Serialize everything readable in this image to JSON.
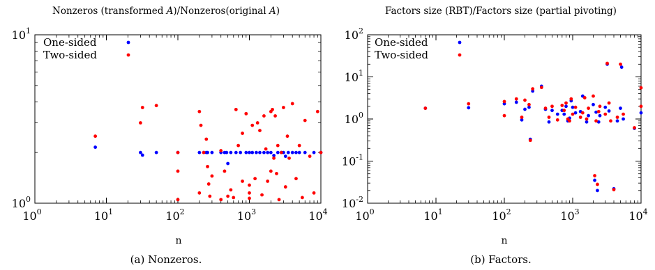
{
  "chart_data": [
    {
      "type": "scatter",
      "title": "Nonzeros (transformed A)/Nonzeros(original A)",
      "xlabel": "n",
      "ylabel": "",
      "caption": "(a) Nonzeros.",
      "x_scale": "log",
      "y_scale": "log",
      "xlim": [
        1,
        10000
      ],
      "ylim": [
        1,
        10
      ],
      "x_ticks": [
        {
          "value": 1,
          "base": "10",
          "exp": "0"
        },
        {
          "value": 10,
          "base": "10",
          "exp": "1"
        },
        {
          "value": 100,
          "base": "10",
          "exp": "2"
        },
        {
          "value": 1000,
          "base": "10",
          "exp": "3"
        },
        {
          "value": 10000,
          "base": "10",
          "exp": "4"
        }
      ],
      "y_ticks": [
        {
          "value": 1,
          "base": "10",
          "exp": "0"
        },
        {
          "value": 10,
          "base": "10",
          "exp": "1"
        }
      ],
      "grid": false,
      "legend_position": "top-left",
      "series": [
        {
          "name": "One-sided",
          "color": "#0000ff",
          "points": [
            [
              7,
              2.15
            ],
            [
              30,
              2.0
            ],
            [
              32,
              1.93
            ],
            [
              50,
              2.0
            ],
            [
              100,
              2.0
            ],
            [
              200,
              2.0
            ],
            [
              230,
              2.0
            ],
            [
              250,
              2.0
            ],
            [
              260,
              2.0
            ],
            [
              300,
              2.0
            ],
            [
              400,
              2.0
            ],
            [
              450,
              2.0
            ],
            [
              480,
              2.0
            ],
            [
              500,
              1.72
            ],
            [
              550,
              2.0
            ],
            [
              650,
              2.0
            ],
            [
              750,
              2.0
            ],
            [
              900,
              2.0
            ],
            [
              1000,
              2.0
            ],
            [
              1100,
              2.0
            ],
            [
              1250,
              2.0
            ],
            [
              1400,
              2.0
            ],
            [
              1600,
              2.0
            ],
            [
              1800,
              2.0
            ],
            [
              2000,
              2.0
            ],
            [
              2200,
              1.92
            ],
            [
              2500,
              2.0
            ],
            [
              2800,
              2.0
            ],
            [
              3000,
              2.0
            ],
            [
              3200,
              1.9
            ],
            [
              3500,
              2.0
            ],
            [
              4000,
              2.0
            ],
            [
              4500,
              2.0
            ],
            [
              5000,
              2.0
            ],
            [
              6000,
              2.0
            ],
            [
              8000,
              2.0
            ],
            [
              10000,
              2.0
            ]
          ]
        },
        {
          "name": "Two-sided",
          "color": "#ff0000",
          "points": [
            [
              7,
              2.5
            ],
            [
              30,
              3.0
            ],
            [
              32,
              3.7
            ],
            [
              50,
              3.8
            ],
            [
              100,
              2.0
            ],
            [
              100,
              1.55
            ],
            [
              100,
              1.05
            ],
            [
              200,
              3.5
            ],
            [
              200,
              1.15
            ],
            [
              210,
              2.9
            ],
            [
              230,
              2.0
            ],
            [
              250,
              2.4
            ],
            [
              260,
              1.65
            ],
            [
              270,
              1.3
            ],
            [
              280,
              1.1
            ],
            [
              300,
              1.45
            ],
            [
              400,
              2.05
            ],
            [
              400,
              1.05
            ],
            [
              450,
              1.55
            ],
            [
              500,
              1.1
            ],
            [
              550,
              1.2
            ],
            [
              600,
              1.08
            ],
            [
              650,
              3.6
            ],
            [
              700,
              2.2
            ],
            [
              800,
              2.6
            ],
            [
              800,
              1.35
            ],
            [
              900,
              3.4
            ],
            [
              1000,
              1.07
            ],
            [
              1000,
              1.28
            ],
            [
              1000,
              1.15
            ],
            [
              1100,
              2.9
            ],
            [
              1200,
              1.4
            ],
            [
              1300,
              3.0
            ],
            [
              1400,
              2.7
            ],
            [
              1500,
              1.12
            ],
            [
              1600,
              3.3
            ],
            [
              1700,
              2.1
            ],
            [
              1800,
              1.35
            ],
            [
              2000,
              1.55
            ],
            [
              2000,
              3.5
            ],
            [
              2100,
              3.6
            ],
            [
              2200,
              1.85
            ],
            [
              2300,
              3.3
            ],
            [
              2400,
              1.5
            ],
            [
              2500,
              2.2
            ],
            [
              2600,
              1.05
            ],
            [
              2800,
              2.0
            ],
            [
              3000,
              3.7
            ],
            [
              3200,
              1.25
            ],
            [
              3400,
              2.5
            ],
            [
              3600,
              1.85
            ],
            [
              4000,
              3.9
            ],
            [
              4500,
              1.4
            ],
            [
              5000,
              2.2
            ],
            [
              5500,
              1.08
            ],
            [
              6000,
              3.1
            ],
            [
              7000,
              1.9
            ],
            [
              8000,
              1.15
            ],
            [
              9000,
              3.5
            ],
            [
              10000,
              2.0
            ]
          ]
        }
      ]
    },
    {
      "type": "scatter",
      "title": "Factors size (RBT)/Factors size (partial pivoting)",
      "xlabel": "n",
      "ylabel": "",
      "caption": "(b) Factors.",
      "x_scale": "log",
      "y_scale": "log",
      "xlim": [
        1,
        10000
      ],
      "ylim": [
        0.01,
        100
      ],
      "x_ticks": [
        {
          "value": 1,
          "base": "10",
          "exp": "0"
        },
        {
          "value": 10,
          "base": "10",
          "exp": "1"
        },
        {
          "value": 100,
          "base": "10",
          "exp": "2"
        },
        {
          "value": 1000,
          "base": "10",
          "exp": "3"
        },
        {
          "value": 10000,
          "base": "10",
          "exp": "4"
        }
      ],
      "y_ticks": [
        {
          "value": 0.01,
          "base": "10",
          "exp": "-2"
        },
        {
          "value": 0.1,
          "base": "10",
          "exp": "-1"
        },
        {
          "value": 1,
          "base": "10",
          "exp": "0"
        },
        {
          "value": 10,
          "base": "10",
          "exp": "1"
        },
        {
          "value": 100,
          "base": "10",
          "exp": "2"
        }
      ],
      "grid": false,
      "legend_position": "top-left",
      "series": [
        {
          "name": "One-sided",
          "color": "#0000ff",
          "points": [
            [
              7,
              1.8
            ],
            [
              30,
              1.85
            ],
            [
              100,
              2.3
            ],
            [
              150,
              2.5
            ],
            [
              180,
              0.95
            ],
            [
              200,
              1.7
            ],
            [
              230,
              1.9
            ],
            [
              240,
              0.33
            ],
            [
              260,
              4.6
            ],
            [
              350,
              6.0
            ],
            [
              400,
              1.7
            ],
            [
              450,
              0.85
            ],
            [
              500,
              1.6
            ],
            [
              600,
              1.3
            ],
            [
              700,
              1.6
            ],
            [
              750,
              1.3
            ],
            [
              800,
              2.0
            ],
            [
              850,
              0.9
            ],
            [
              900,
              1.05
            ],
            [
              950,
              2.7
            ],
            [
              1000,
              1.9
            ],
            [
              1100,
              1.4
            ],
            [
              1300,
              1.5
            ],
            [
              1400,
              3.5
            ],
            [
              1600,
              0.85
            ],
            [
              1700,
              1.2
            ],
            [
              2000,
              2.2
            ],
            [
              2100,
              0.035
            ],
            [
              2200,
              1.45
            ],
            [
              2300,
              0.02
            ],
            [
              2400,
              0.85
            ],
            [
              2500,
              1.2
            ],
            [
              3000,
              1.9
            ],
            [
              3200,
              20.0
            ],
            [
              3400,
              1.55
            ],
            [
              4000,
              0.022
            ],
            [
              4500,
              0.9
            ],
            [
              5000,
              1.8
            ],
            [
              5200,
              17.0
            ],
            [
              5500,
              1.0
            ],
            [
              8000,
              0.6
            ],
            [
              10000,
              1.4
            ]
          ]
        },
        {
          "name": "Two-sided",
          "color": "#ff0000",
          "points": [
            [
              7,
              1.8
            ],
            [
              30,
              2.3
            ],
            [
              100,
              2.6
            ],
            [
              100,
              1.2
            ],
            [
              150,
              3.0
            ],
            [
              180,
              1.1
            ],
            [
              200,
              2.8
            ],
            [
              230,
              2.2
            ],
            [
              240,
              0.31
            ],
            [
              260,
              5.2
            ],
            [
              350,
              5.6
            ],
            [
              400,
              1.8
            ],
            [
              450,
              1.1
            ],
            [
              500,
              2.0
            ],
            [
              600,
              0.95
            ],
            [
              700,
              2.1
            ],
            [
              750,
              1.6
            ],
            [
              800,
              2.4
            ],
            [
              850,
              1.0
            ],
            [
              900,
              0.9
            ],
            [
              950,
              3.0
            ],
            [
              1000,
              1.3
            ],
            [
              1100,
              1.9
            ],
            [
              1300,
              1.1
            ],
            [
              1400,
              1.4
            ],
            [
              1500,
              3.2
            ],
            [
              1600,
              1.0
            ],
            [
              1700,
              1.8
            ],
            [
              2000,
              3.5
            ],
            [
              2100,
              0.045
            ],
            [
              2200,
              0.9
            ],
            [
              2300,
              0.028
            ],
            [
              2400,
              1.5
            ],
            [
              2500,
              2.0
            ],
            [
              3000,
              1.3
            ],
            [
              3200,
              21.0
            ],
            [
              3400,
              2.4
            ],
            [
              3600,
              0.9
            ],
            [
              4000,
              0.021
            ],
            [
              4500,
              1.1
            ],
            [
              5000,
              20.0
            ],
            [
              5500,
              1.3
            ],
            [
              8000,
              0.62
            ],
            [
              10000,
              5.5
            ],
            [
              10000,
              2.0
            ]
          ]
        }
      ]
    }
  ]
}
